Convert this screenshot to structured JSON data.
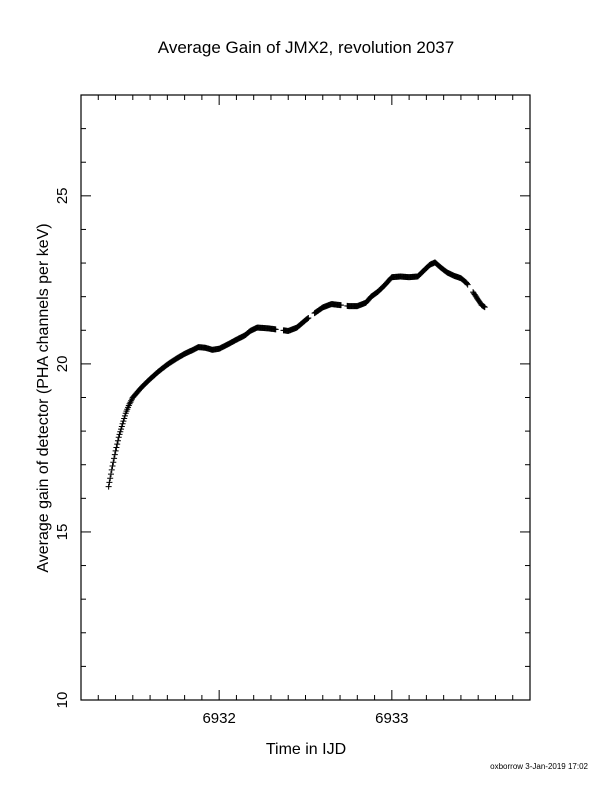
{
  "chart_data": {
    "type": "scatter",
    "title": "Average Gain of JMX2, revolution 2037",
    "xlabel": "Time in IJD",
    "ylabel": "Average gain of detector (PHA channels per keV)",
    "xlim": [
      6931.2,
      6933.8
    ],
    "ylim": [
      10,
      28
    ],
    "x_ticks": [
      6932,
      6933
    ],
    "x_tick_labels": [
      "6932",
      "6933"
    ],
    "x_minor_step": 0.1,
    "y_ticks": [
      10,
      15,
      20,
      25
    ],
    "y_tick_labels": [
      "10",
      "15",
      "20",
      "25"
    ],
    "y_minor_step": 1,
    "grid": false,
    "marker": "plus",
    "color": "#000000",
    "curve": [
      [
        6931.36,
        16.35
      ],
      [
        6931.38,
        16.9
      ],
      [
        6931.4,
        17.4
      ],
      [
        6931.42,
        17.85
      ],
      [
        6931.44,
        18.2
      ],
      [
        6931.46,
        18.55
      ],
      [
        6931.48,
        18.8
      ],
      [
        6931.5,
        19.0
      ],
      [
        6931.55,
        19.3
      ],
      [
        6931.6,
        19.55
      ],
      [
        6931.65,
        19.78
      ],
      [
        6931.7,
        19.98
      ],
      [
        6931.75,
        20.15
      ],
      [
        6931.8,
        20.3
      ],
      [
        6931.85,
        20.42
      ],
      [
        6931.88,
        20.5
      ],
      [
        6931.92,
        20.48
      ],
      [
        6931.96,
        20.42
      ],
      [
        6932.0,
        20.45
      ],
      [
        6932.05,
        20.58
      ],
      [
        6932.1,
        20.72
      ],
      [
        6932.15,
        20.85
      ],
      [
        6932.18,
        20.98
      ],
      [
        6932.22,
        21.08
      ],
      [
        6932.28,
        21.06
      ],
      [
        6932.34,
        21.02
      ],
      [
        6932.4,
        20.98
      ],
      [
        6932.45,
        21.08
      ],
      [
        6932.5,
        21.3
      ],
      [
        6932.55,
        21.5
      ],
      [
        6932.6,
        21.68
      ],
      [
        6932.65,
        21.78
      ],
      [
        6932.7,
        21.75
      ],
      [
        6932.75,
        21.72
      ],
      [
        6932.8,
        21.72
      ],
      [
        6932.85,
        21.82
      ],
      [
        6932.88,
        22.0
      ],
      [
        6932.92,
        22.15
      ],
      [
        6932.96,
        22.35
      ],
      [
        6933.0,
        22.58
      ],
      [
        6933.05,
        22.6
      ],
      [
        6933.1,
        22.58
      ],
      [
        6933.15,
        22.6
      ],
      [
        6933.18,
        22.75
      ],
      [
        6933.22,
        22.95
      ],
      [
        6933.25,
        23.02
      ],
      [
        6933.28,
        22.88
      ],
      [
        6933.32,
        22.72
      ],
      [
        6933.36,
        22.62
      ],
      [
        6933.4,
        22.55
      ],
      [
        6933.43,
        22.42
      ],
      [
        6933.46,
        22.22
      ],
      [
        6933.49,
        21.98
      ],
      [
        6933.52,
        21.75
      ],
      [
        6933.54,
        21.68
      ]
    ],
    "gaps": [
      [
        6932.33,
        6932.37
      ],
      [
        6932.52,
        6932.55
      ],
      [
        6932.71,
        6932.74
      ],
      [
        6933.44,
        6933.47
      ]
    ]
  },
  "footer": "oxborrow  3-Jan-2019 17:02"
}
